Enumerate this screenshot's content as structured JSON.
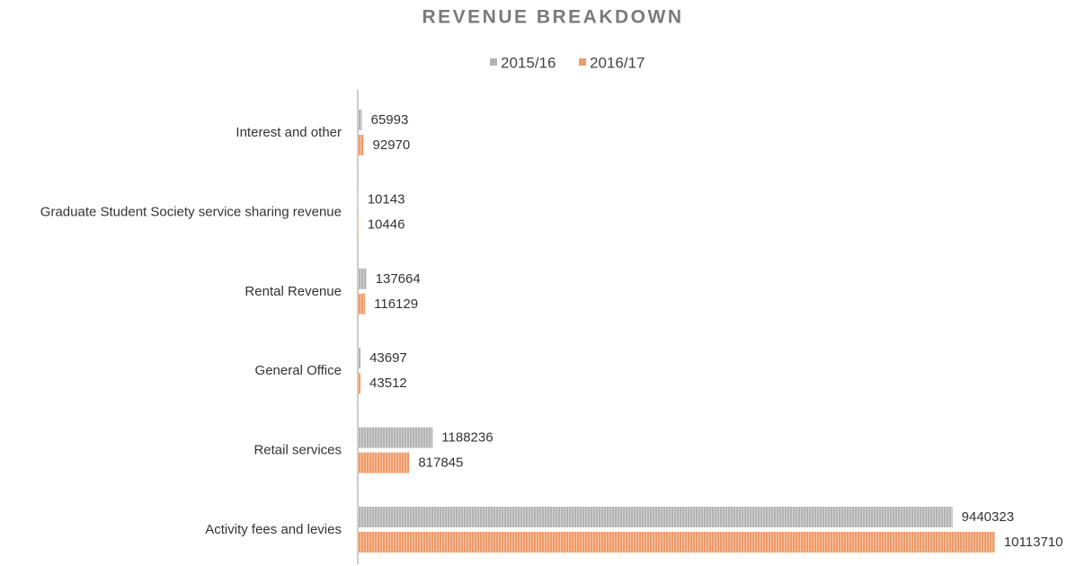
{
  "chart_data": {
    "type": "bar",
    "orientation": "horizontal",
    "title": "REVENUE BREAKDOWN",
    "categories": [
      "Interest and other",
      "Graduate Student Society service sharing revenue",
      "Rental Revenue",
      "General Office",
      "Retail services",
      "Activity fees and levies"
    ],
    "series": [
      {
        "name": "2015/16",
        "color": "#b3b3b3",
        "values": [
          65993,
          10143,
          137664,
          43697,
          1188236,
          9440323
        ]
      },
      {
        "name": "2016/17",
        "color": "#ef9a68",
        "values": [
          92970,
          10446,
          116129,
          43512,
          817845,
          10113710
        ]
      }
    ],
    "xlim": [
      0,
      11300000
    ],
    "legend": "top"
  }
}
